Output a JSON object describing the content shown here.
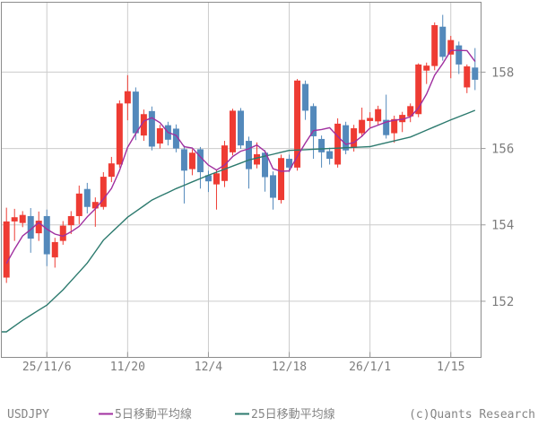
{
  "footer": {
    "symbol": "USDJPY",
    "legend": [
      {
        "label": "5日移動平均線",
        "color": "#a02f9f"
      },
      {
        "label": "25日移動平均線",
        "color": "#2c7a6e"
      }
    ],
    "copyright": "(c)Quants Research"
  },
  "chart_data": {
    "type": "candlestick",
    "title": "",
    "symbol": "USDJPY",
    "legend_position": "bottom",
    "grid": true,
    "y_axis_side": "right",
    "ylim": [
      150.53,
      159.83
    ],
    "y_ticks": [
      152,
      154,
      156,
      158
    ],
    "x_ticks": [
      {
        "index": 5,
        "label": "25/11/6"
      },
      {
        "index": 15,
        "label": "11/20"
      },
      {
        "index": 25,
        "label": "12/4"
      },
      {
        "index": 35,
        "label": "12/18"
      },
      {
        "index": 45,
        "label": "26/1/1"
      },
      {
        "index": 55,
        "label": "1/15"
      }
    ],
    "up_color": "#ee3b33",
    "down_color": "#5389bb",
    "ma5_color": "#a02f9f",
    "ma25_color": "#2c7a6e",
    "grid_color": "#cccccc",
    "border_color": "#8c8c8c",
    "tick_color": "#999999",
    "label_color": "#7d7d7d",
    "candles_ohlc": [
      [
        152.62,
        154.45,
        152.48,
        154.09
      ],
      [
        154.09,
        154.42,
        153.58,
        154.2
      ],
      [
        154.05,
        154.36,
        153.94,
        154.26
      ],
      [
        154.23,
        154.44,
        153.27,
        153.64
      ],
      [
        153.78,
        154.35,
        153.58,
        154.11
      ],
      [
        154.23,
        154.4,
        152.92,
        153.23
      ],
      [
        153.15,
        153.66,
        152.88,
        153.55
      ],
      [
        153.58,
        154.1,
        153.48,
        153.98
      ],
      [
        153.99,
        154.36,
        153.76,
        154.23
      ],
      [
        154.23,
        155.03,
        154.02,
        154.82
      ],
      [
        154.94,
        155.1,
        154.3,
        154.47
      ],
      [
        154.43,
        154.72,
        153.95,
        154.6
      ],
      [
        154.47,
        155.38,
        154.4,
        155.26
      ],
      [
        155.26,
        155.78,
        155.12,
        155.61
      ],
      [
        155.58,
        157.26,
        155.5,
        157.18
      ],
      [
        157.18,
        157.92,
        156.74,
        157.5
      ],
      [
        157.49,
        157.6,
        156.22,
        156.4
      ],
      [
        156.34,
        157.02,
        156.2,
        156.9
      ],
      [
        156.98,
        157.1,
        155.95,
        156.05
      ],
      [
        156.13,
        156.62,
        156.0,
        156.53
      ],
      [
        156.61,
        156.7,
        156.08,
        156.23
      ],
      [
        156.52,
        156.63,
        155.9,
        156.0
      ],
      [
        155.98,
        156.08,
        154.56,
        155.42
      ],
      [
        155.46,
        155.98,
        155.3,
        155.89
      ],
      [
        155.98,
        156.04,
        154.95,
        155.38
      ],
      [
        155.3,
        155.42,
        154.86,
        155.14
      ],
      [
        155.06,
        155.44,
        154.4,
        155.35
      ],
      [
        155.15,
        156.2,
        154.99,
        156.08
      ],
      [
        155.9,
        157.04,
        155.82,
        156.99
      ],
      [
        156.99,
        157.06,
        155.99,
        156.08
      ],
      [
        156.2,
        156.31,
        154.95,
        155.46
      ],
      [
        155.58,
        156.16,
        155.48,
        155.85
      ],
      [
        155.89,
        155.96,
        154.87,
        155.25
      ],
      [
        155.3,
        155.4,
        154.4,
        154.71
      ],
      [
        154.65,
        155.84,
        154.56,
        155.75
      ],
      [
        155.73,
        155.84,
        155.38,
        155.5
      ],
      [
        155.5,
        157.82,
        155.42,
        157.78
      ],
      [
        157.69,
        157.78,
        156.75,
        156.99
      ],
      [
        157.11,
        157.18,
        155.73,
        156.32
      ],
      [
        156.25,
        156.34,
        155.5,
        155.9
      ],
      [
        155.93,
        156.02,
        155.58,
        155.73
      ],
      [
        155.58,
        156.79,
        155.5,
        156.65
      ],
      [
        156.61,
        156.7,
        155.85,
        155.95
      ],
      [
        156.02,
        156.62,
        155.92,
        156.53
      ],
      [
        156.4,
        157.07,
        156.3,
        156.75
      ],
      [
        156.72,
        156.95,
        156.55,
        156.8
      ],
      [
        156.71,
        157.12,
        156.62,
        157.03
      ],
      [
        156.75,
        157.41,
        156.26,
        156.35
      ],
      [
        156.4,
        156.86,
        156.15,
        156.77
      ],
      [
        156.69,
        156.96,
        156.43,
        156.88
      ],
      [
        156.84,
        157.18,
        156.69,
        157.11
      ],
      [
        156.9,
        158.23,
        156.82,
        158.2
      ],
      [
        158.04,
        158.25,
        157.69,
        158.17
      ],
      [
        158.16,
        159.3,
        158.05,
        159.23
      ],
      [
        159.19,
        159.5,
        158.3,
        158.4
      ],
      [
        158.46,
        158.95,
        157.84,
        158.84
      ],
      [
        158.7,
        158.8,
        157.95,
        158.2
      ],
      [
        157.6,
        158.2,
        157.45,
        158.15
      ],
      [
        158.12,
        158.63,
        157.53,
        157.8
      ]
    ],
    "ma5_window": 5,
    "ma5_seed_closes": [
      152.3,
      152.55,
      152.8,
      153.2
    ],
    "ma25_anchors": [
      [
        0,
        151.2
      ],
      [
        2,
        151.5
      ],
      [
        5,
        151.9
      ],
      [
        7,
        152.3
      ],
      [
        10,
        153.0
      ],
      [
        12,
        153.6
      ],
      [
        15,
        154.2
      ],
      [
        18,
        154.65
      ],
      [
        21,
        154.95
      ],
      [
        25,
        155.3
      ],
      [
        30,
        155.7
      ],
      [
        35,
        155.95
      ],
      [
        40,
        156.0
      ],
      [
        45,
        156.05
      ],
      [
        50,
        156.3
      ],
      [
        55,
        156.75
      ],
      [
        58,
        157.0
      ]
    ]
  }
}
